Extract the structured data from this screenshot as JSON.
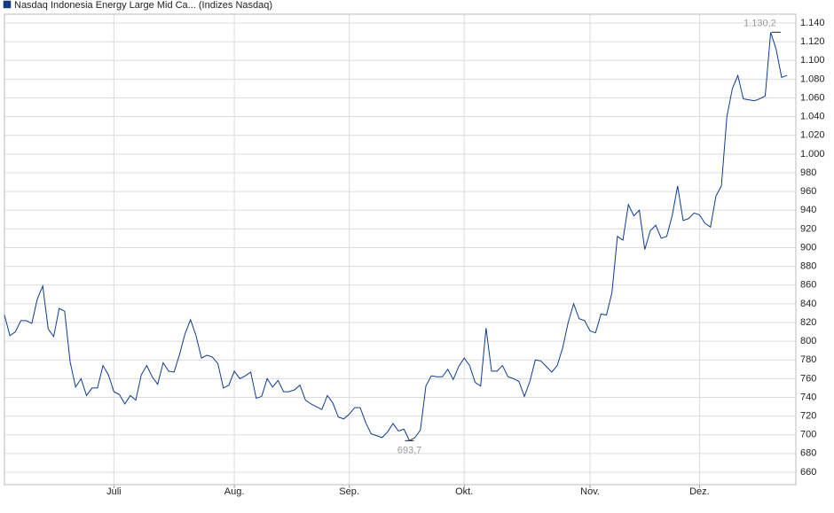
{
  "chart_data": {
    "type": "line",
    "series": [
      {
        "name": "Nasdaq Indonesia Energy Large Mid Ca... (Indizes Nasdaq)",
        "color": "#0b3d91",
        "values": [
          828,
          806,
          810,
          822,
          822,
          819,
          845,
          859,
          813,
          805,
          835,
          832,
          778,
          751,
          760,
          742,
          750,
          750,
          774,
          764,
          746,
          743,
          733,
          742,
          737,
          764,
          774,
          762,
          754,
          777,
          768,
          767,
          786,
          808,
          823,
          806,
          782,
          785,
          783,
          776,
          750,
          753,
          768,
          760,
          763,
          767,
          739,
          741,
          760,
          751,
          758,
          746,
          746,
          748,
          753,
          737,
          733,
          730,
          727,
          742,
          734,
          719,
          717,
          722,
          729,
          729,
          713,
          701,
          699,
          697,
          703,
          712,
          704,
          706,
          693.7,
          697,
          705,
          752,
          763,
          762,
          762,
          770,
          759,
          773,
          782,
          774,
          756,
          752,
          814,
          768,
          768,
          774,
          762,
          760,
          757,
          741,
          757,
          780,
          779,
          773,
          767,
          774,
          793,
          820,
          840,
          824,
          822,
          811,
          809,
          829,
          828,
          852,
          912,
          908,
          946,
          934,
          940,
          898,
          918,
          924,
          910,
          912,
          934,
          966,
          929,
          931,
          937,
          935,
          926,
          922,
          955,
          966,
          1040,
          1070,
          1084,
          1059,
          1058,
          1057,
          1059,
          1062,
          1130.2,
          1112,
          1082,
          1084
        ]
      }
    ],
    "xlim": [
      0,
      144.6
    ],
    "xticks": [
      {
        "value": 20,
        "label": "Juli"
      },
      {
        "value": 42,
        "label": "Aug."
      },
      {
        "value": 63,
        "label": "Sep."
      },
      {
        "value": 84,
        "label": "Okt."
      },
      {
        "value": 107,
        "label": "Nov."
      },
      {
        "value": 127,
        "label": "Dez."
      }
    ],
    "ylim": [
      646.7,
      1149.5
    ],
    "yticks": [
      660,
      680,
      700,
      720,
      740,
      760,
      780,
      800,
      820,
      840,
      860,
      880,
      900,
      920,
      940,
      960,
      980,
      {
        "value": 1000,
        "label": "1.000"
      },
      {
        "value": 1020,
        "label": "1.020"
      },
      {
        "value": 1040,
        "label": "1.040"
      },
      {
        "value": 1060,
        "label": "1.060"
      },
      {
        "value": 1080,
        "label": "1.080"
      },
      {
        "value": 1100,
        "label": "1.100"
      },
      {
        "value": 1120,
        "label": "1.120"
      },
      {
        "value": 1140,
        "label": "1.140"
      }
    ],
    "grid": true,
    "extremes": [
      {
        "x": 141,
        "value": 1130.2,
        "label": "1.130,2",
        "position": "above"
      },
      {
        "x": 74,
        "value": 693.7,
        "label": "693,7",
        "position": "below"
      }
    ]
  }
}
